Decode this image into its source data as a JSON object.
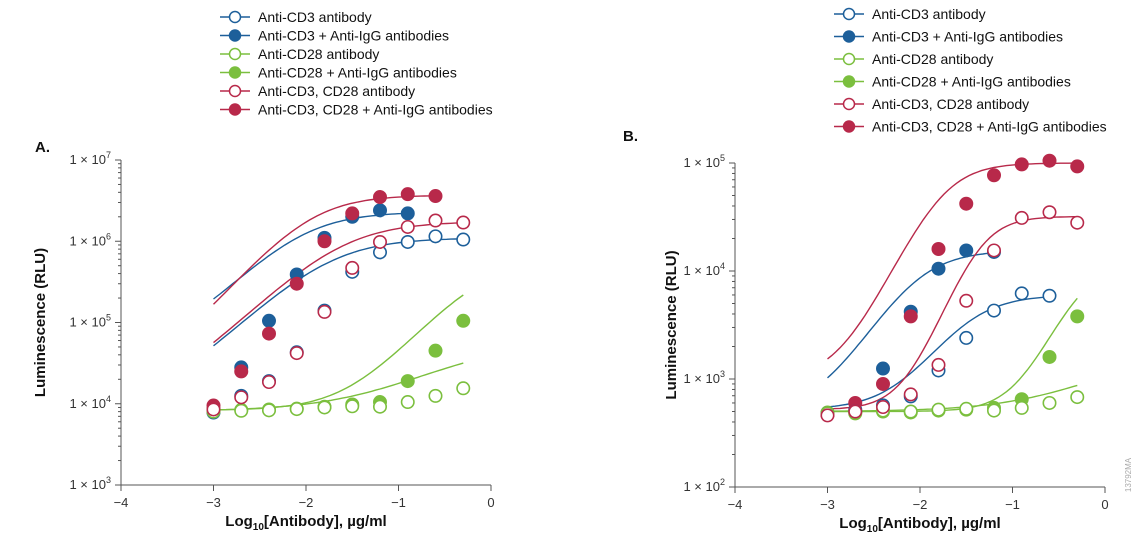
{
  "colors": {
    "blue": "#1d5f9a",
    "green": "#7bbf3e",
    "red": "#b8294a",
    "axis": "#555555"
  },
  "side_note": "13792MA",
  "chart_data": [
    {
      "type": "scatter",
      "panel_label": "A.",
      "xlabel_main": "Log",
      "xlabel_sub": "10",
      "xlabel_rest": "[Antibody], µg/ml",
      "ylabel": "Luminescence (RLU)",
      "xlim": [
        -4,
        0
      ],
      "ylim": [
        1000,
        10000000
      ],
      "yscale": "log",
      "grid": false,
      "legend": "top",
      "x_ticks": [
        "-4",
        "-3",
        "-2",
        "-1",
        "0"
      ],
      "y_tick_exponents": [
        "3",
        "4",
        "5",
        "6",
        "7"
      ],
      "y_tick_base": "1 × 10",
      "series": [
        {
          "name": "Anti-CD3 antibody",
          "color": "blue",
          "filled": false,
          "x": [
            -3.0,
            -2.7,
            -2.4,
            -2.1,
            -1.8,
            -1.5,
            -1.2,
            -0.9,
            -0.6,
            -0.3
          ],
          "y": [
            7800,
            12500,
            19000,
            43000,
            140000,
            420000,
            730000,
            980000,
            1150000,
            1050000
          ],
          "curve": {
            "bottom": 7500,
            "top": 1100000,
            "ec50": -1.75,
            "hill": 1.1
          }
        },
        {
          "name": "Anti-CD3 + Anti-IgG antibodies",
          "color": "blue",
          "filled": true,
          "x": [
            -3.0,
            -2.7,
            -2.4,
            -2.1,
            -1.8,
            -1.5,
            -1.2,
            -0.9
          ],
          "y": [
            8500,
            28000,
            105000,
            390000,
            1100000,
            2000000,
            2400000,
            2200000
          ],
          "curve": {
            "bottom": 42000,
            "top": 2300000,
            "ec50": -2.05,
            "hill": 1.2
          }
        },
        {
          "name": "Anti-CD28 antibody",
          "color": "green",
          "filled": false,
          "x": [
            -3.0,
            -2.7,
            -2.4,
            -2.1,
            -1.8,
            -1.5,
            -1.2,
            -0.9,
            -0.6,
            -0.3
          ],
          "y": [
            8000,
            8200,
            8300,
            8600,
            9000,
            9300,
            9200,
            10500,
            12500,
            15500
          ],
          "curve": {
            "bottom": 8100,
            "top": 60000,
            "ec50": -0.2,
            "hill": 0.8
          }
        },
        {
          "name": "Anti-CD28 + Anti-IgG antibodies",
          "color": "green",
          "filled": true,
          "x": [
            -3.0,
            -2.7,
            -2.4,
            -2.1,
            -1.8,
            -1.5,
            -1.2,
            -0.9,
            -0.6,
            -0.3
          ],
          "y": [
            8500,
            8400,
            8500,
            8700,
            9200,
            9800,
            10500,
            19000,
            45000,
            105000
          ],
          "curve": {
            "bottom": 8300,
            "top": 600000,
            "ec50": -0.1,
            "hill": 1.3
          }
        },
        {
          "name": "Anti-CD3, CD28 antibody",
          "color": "red",
          "filled": false,
          "x": [
            -3.0,
            -2.7,
            -2.4,
            -2.1,
            -1.8,
            -1.5,
            -1.2,
            -0.9,
            -0.6,
            -0.3
          ],
          "y": [
            8500,
            12000,
            18500,
            42000,
            135000,
            470000,
            980000,
            1500000,
            1800000,
            1700000
          ],
          "curve": {
            "bottom": 7800,
            "top": 1750000,
            "ec50": -1.6,
            "hill": 1.1
          }
        },
        {
          "name": "Anti-CD3, CD28 + Anti-IgG antibodies",
          "color": "red",
          "filled": true,
          "x": [
            -3.0,
            -2.7,
            -2.4,
            -2.1,
            -1.8,
            -1.5,
            -1.2,
            -0.9,
            -0.6
          ],
          "y": [
            9500,
            25000,
            73000,
            300000,
            1000000,
            2200000,
            3500000,
            3800000,
            3600000
          ],
          "curve": {
            "bottom": 15000,
            "top": 3700000,
            "ec50": -1.95,
            "hill": 1.3
          }
        }
      ]
    },
    {
      "type": "scatter",
      "panel_label": "B.",
      "xlabel_main": "Log",
      "xlabel_sub": "10",
      "xlabel_rest": "[Antibody], µg/ml",
      "ylabel": "Luminescence (RLU)",
      "xlim": [
        -4,
        0
      ],
      "ylim": [
        100,
        100000
      ],
      "yscale": "log",
      "grid": false,
      "legend": "top",
      "x_ticks": [
        "-4",
        "-3",
        "-2",
        "-1",
        "0"
      ],
      "y_tick_exponents": [
        "2",
        "3",
        "4",
        "5"
      ],
      "y_tick_base": "1 × 10",
      "series": [
        {
          "name": "Anti-CD3 antibody",
          "color": "blue",
          "filled": false,
          "x": [
            -3.0,
            -2.7,
            -2.4,
            -2.1,
            -1.8,
            -1.5,
            -1.2,
            -0.9,
            -0.6
          ],
          "y": [
            480,
            500,
            570,
            690,
            1200,
            2400,
            4300,
            6200,
            5900
          ],
          "curve": {
            "bottom": 520,
            "top": 6000,
            "ec50": -1.5,
            "hill": 1.5
          }
        },
        {
          "name": "Anti-CD3 + Anti-IgG antibodies",
          "color": "blue",
          "filled": true,
          "x": [
            -3.0,
            -2.7,
            -2.4,
            -2.1,
            -1.8,
            -1.5,
            -1.2
          ],
          "y": [
            470,
            520,
            1250,
            4200,
            10500,
            15500,
            15000
          ],
          "curve": {
            "bottom": 480,
            "top": 15500,
            "ec50": -2.05,
            "hill": 1.5
          }
        },
        {
          "name": "Anti-CD28 antibody",
          "color": "green",
          "filled": false,
          "x": [
            -3.0,
            -2.7,
            -2.4,
            -2.1,
            -1.8,
            -1.5,
            -1.2,
            -0.9,
            -0.6,
            -0.3
          ],
          "y": [
            480,
            490,
            510,
            500,
            520,
            530,
            510,
            540,
            600,
            680
          ],
          "curve": {
            "bottom": 500,
            "top": 2000,
            "ec50": 0.3,
            "hill": 0.8
          }
        },
        {
          "name": "Anti-CD28 + Anti-IgG antibodies",
          "color": "green",
          "filled": true,
          "x": [
            -3.0,
            -2.7,
            -2.4,
            -2.1,
            -1.8,
            -1.5,
            -1.2,
            -0.9,
            -0.6,
            -0.3
          ],
          "y": [
            490,
            480,
            500,
            490,
            510,
            520,
            540,
            650,
            1600,
            3800
          ],
          "curve": {
            "bottom": 500,
            "top": 12000,
            "ec50": -0.25,
            "hill": 2.0
          }
        },
        {
          "name": "Anti-CD3, CD28 antibody",
          "color": "red",
          "filled": false,
          "x": [
            -3.0,
            -2.7,
            -2.4,
            -2.1,
            -1.8,
            -1.5,
            -1.2,
            -0.9,
            -0.6,
            -0.3
          ],
          "y": [
            460,
            500,
            550,
            720,
            1350,
            5300,
            15500,
            31000,
            35000,
            28000
          ],
          "curve": {
            "bottom": 520,
            "top": 32000,
            "ec50": -1.35,
            "hill": 2.2
          }
        },
        {
          "name": "Anti-CD3, CD28 + Anti-IgG antibodies",
          "color": "red",
          "filled": true,
          "x": [
            -3.0,
            -2.7,
            -2.4,
            -2.1,
            -1.8,
            -1.5,
            -1.2,
            -0.9,
            -0.6,
            -0.3
          ],
          "y": [
            470,
            600,
            900,
            3800,
            16000,
            42000,
            77000,
            97000,
            105000,
            93000
          ],
          "curve": {
            "bottom": 980,
            "top": 100000,
            "ec50": -1.75,
            "hill": 1.8
          }
        }
      ]
    }
  ]
}
